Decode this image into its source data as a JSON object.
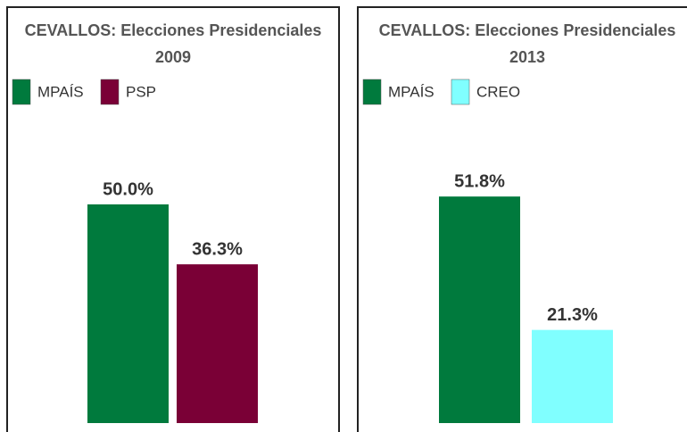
{
  "chart_data": [
    {
      "type": "bar",
      "title": "CEVALLOS: Elecciones Presidenciales",
      "subtitle": "2009",
      "series": [
        {
          "name": "MPAÍS",
          "color": "#007a3d",
          "values": [
            50.0
          ],
          "value_labels": [
            "50.0%"
          ]
        },
        {
          "name": "PSP",
          "color": "#7a0036",
          "values": [
            36.3
          ],
          "value_labels": [
            "36.3%"
          ]
        }
      ]
    },
    {
      "type": "bar",
      "title": "CEVALLOS: Elecciones Presidenciales",
      "subtitle": "2013",
      "series": [
        {
          "name": "MPAÍS",
          "color": "#007a3d",
          "values": [
            51.8
          ],
          "value_labels": [
            "51.8%"
          ]
        },
        {
          "name": "CREO",
          "color": "#80ffff",
          "values": [
            21.3
          ],
          "value_labels": [
            "21.3%"
          ]
        }
      ]
    }
  ]
}
